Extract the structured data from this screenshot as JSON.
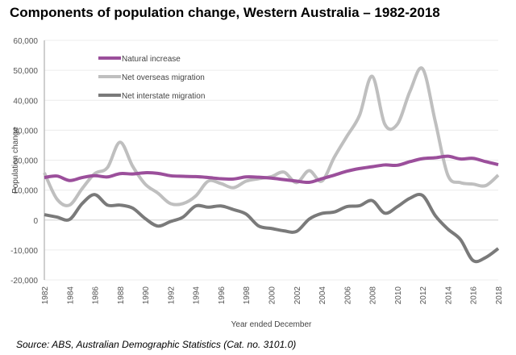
{
  "chart_data": {
    "type": "line",
    "title": "Components of population change, Western Australia – 1982-2018",
    "xlabel": "Year ended December",
    "ylabel": "Population change",
    "ylim": [
      -20000,
      60000
    ],
    "yticks": [
      "-20,000",
      "-10,000",
      "0",
      "10,000",
      "20,000",
      "30,000",
      "40,000",
      "50,000",
      "60,000"
    ],
    "ytick_values": [
      -20000,
      -10000,
      0,
      10000,
      20000,
      30000,
      40000,
      50000,
      60000
    ],
    "xticks": [
      "1982",
      "1984",
      "1986",
      "1988",
      "1990",
      "1992",
      "1994",
      "1996",
      "1998",
      "2000",
      "2002",
      "2004",
      "2006",
      "2008",
      "2010",
      "2012",
      "2014",
      "2016",
      "2018"
    ],
    "grid": true,
    "legend_position": "top-left",
    "x": [
      1982,
      1983,
      1984,
      1985,
      1986,
      1987,
      1988,
      1989,
      1990,
      1991,
      1992,
      1993,
      1994,
      1995,
      1996,
      1997,
      1998,
      1999,
      2000,
      2001,
      2002,
      2003,
      2004,
      2005,
      2006,
      2007,
      2008,
      2009,
      2010,
      2011,
      2012,
      2013,
      2014,
      2015,
      2016,
      2017,
      2018
    ],
    "series": [
      {
        "name": "Natural increase",
        "color": "#9b4f9b",
        "values": [
          14200,
          14700,
          13200,
          14200,
          14800,
          14400,
          15500,
          15400,
          15800,
          15600,
          14800,
          14600,
          14500,
          14200,
          13800,
          13700,
          14400,
          14300,
          14000,
          13500,
          13000,
          12600,
          13800,
          15000,
          16300,
          17200,
          17800,
          18400,
          18300,
          19500,
          20500,
          20800,
          21300,
          20400,
          20600,
          19500,
          18500
        ]
      },
      {
        "name": "Net overseas migration",
        "color": "#bfbfbf",
        "values": [
          15800,
          7000,
          5000,
          10500,
          15500,
          17500,
          26000,
          18000,
          12000,
          9000,
          5500,
          5500,
          8000,
          13000,
          12200,
          10800,
          13000,
          13800,
          14500,
          16000,
          12500,
          16500,
          13000,
          21000,
          28000,
          35000,
          48000,
          32000,
          32000,
          43000,
          50500,
          33000,
          15000,
          12500,
          12000,
          11500,
          15000
        ]
      },
      {
        "name": "Net interstate migration",
        "color": "#7a7a7a",
        "values": [
          1800,
          1000,
          200,
          5500,
          8500,
          5000,
          5000,
          4000,
          500,
          -2000,
          -500,
          1000,
          4700,
          4300,
          4700,
          3500,
          2000,
          -2000,
          -2800,
          -3600,
          -3800,
          300,
          2200,
          2700,
          4500,
          4800,
          6500,
          2300,
          4500,
          7300,
          8200,
          1500,
          -3000,
          -6500,
          -13500,
          -12500,
          -9500
        ]
      }
    ]
  },
  "source": "Source:  ABS, Australian Demographic Statistics (Cat. no. 3101.0)"
}
